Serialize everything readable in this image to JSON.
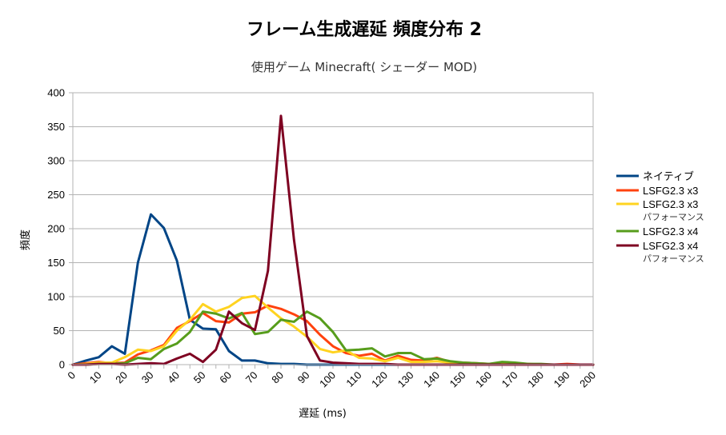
{
  "chart_data": {
    "type": "line",
    "title": "フレーム生成遅延 頻度分布 2",
    "subtitle": "使用ゲーム  Minecraft( シェーダー MOD)",
    "xlabel": "遅延 (ms)",
    "ylabel": "頻度",
    "xlim": [
      0,
      200
    ],
    "ylim": [
      0,
      400
    ],
    "xticks": [
      0,
      10,
      20,
      30,
      40,
      50,
      60,
      70,
      80,
      90,
      100,
      110,
      120,
      130,
      140,
      150,
      160,
      170,
      180,
      190,
      200
    ],
    "yticks": [
      0,
      50,
      100,
      150,
      200,
      250,
      300,
      350,
      400
    ],
    "grid": true,
    "legend_position": "right",
    "x": [
      0,
      5,
      10,
      15,
      20,
      25,
      30,
      35,
      40,
      45,
      50,
      55,
      60,
      65,
      70,
      75,
      80,
      85,
      90,
      95,
      100,
      105,
      110,
      115,
      120,
      125,
      130,
      135,
      140,
      145,
      150,
      155,
      160,
      165,
      170,
      175,
      180,
      185,
      190,
      195,
      200
    ],
    "series": [
      {
        "name": "ネイティブ",
        "name_line2": "",
        "color": "#004586",
        "values": [
          0,
          6,
          11,
          27,
          16,
          150,
          221,
          201,
          153,
          66,
          53,
          52,
          20,
          6,
          6,
          2,
          1,
          1,
          0,
          0,
          0,
          0,
          0,
          0,
          0,
          0,
          0,
          0,
          0,
          0,
          0,
          0,
          0,
          0,
          0,
          0,
          0,
          0,
          0,
          0,
          0
        ]
      },
      {
        "name": "LSFG2.3 x3",
        "name_line2": "",
        "color": "#ff420e",
        "values": [
          0,
          2,
          4,
          2,
          3,
          15,
          21,
          29,
          54,
          64,
          76,
          64,
          62,
          75,
          77,
          87,
          82,
          74,
          64,
          44,
          27,
          17,
          13,
          16,
          6,
          13,
          7,
          6,
          10,
          4,
          3,
          2,
          1,
          1,
          1,
          1,
          0,
          0,
          1,
          0,
          0
        ]
      },
      {
        "name": "LSFG2.3 x3",
        "name_line2": "パフォーマンス",
        "color": "#ffd320",
        "values": [
          0,
          1,
          3,
          3,
          11,
          22,
          20,
          27,
          50,
          66,
          89,
          78,
          85,
          98,
          101,
          84,
          68,
          56,
          41,
          23,
          18,
          21,
          10,
          9,
          5,
          10,
          4,
          4,
          5,
          3,
          2,
          1,
          1,
          1,
          1,
          0,
          0,
          0,
          0,
          0,
          0
        ]
      },
      {
        "name": "LSFG2.3 x4",
        "name_line2": "",
        "color": "#579d1c",
        "values": [
          0,
          0,
          1,
          1,
          2,
          10,
          8,
          23,
          31,
          48,
          78,
          75,
          68,
          76,
          45,
          48,
          66,
          63,
          78,
          68,
          48,
          21,
          22,
          24,
          12,
          17,
          17,
          8,
          9,
          5,
          3,
          2,
          1,
          4,
          3,
          1,
          1,
          0,
          0,
          0,
          0
        ]
      },
      {
        "name": "LSFG2.3 x4",
        "name_line2": "パフォーマンス",
        "color": "#7e0021",
        "values": [
          0,
          0,
          1,
          1,
          0,
          1,
          2,
          1,
          9,
          16,
          4,
          22,
          78,
          61,
          51,
          138,
          366,
          184,
          42,
          6,
          3,
          2,
          1,
          1,
          1,
          0,
          0,
          0,
          0,
          0,
          0,
          0,
          0,
          0,
          0,
          0,
          0,
          0,
          0,
          0,
          0
        ]
      }
    ]
  }
}
